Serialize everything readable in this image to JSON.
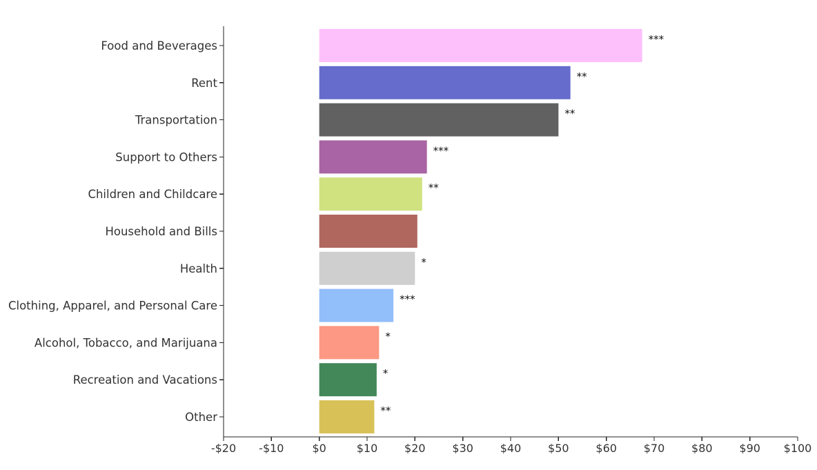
{
  "chart_data": {
    "type": "bar",
    "orientation": "horizontal",
    "title": "",
    "xlabel": "",
    "ylabel": "",
    "xlim": [
      -20,
      100
    ],
    "x_ticks": [
      -20,
      -10,
      0,
      10,
      20,
      30,
      40,
      50,
      60,
      70,
      80,
      90,
      100
    ],
    "x_tick_labels": [
      "-$20",
      "-$10",
      "$0",
      "$10",
      "$20",
      "$30",
      "$40",
      "$50",
      "$60",
      "$70",
      "$80",
      "$90",
      "$100"
    ],
    "grid": false,
    "legend": "none",
    "categories": [
      "Food and Beverages",
      "Rent",
      "Transportation",
      "Support to Others",
      "Children and Childcare",
      "Household and Bills",
      "Health",
      "Clothing, Apparel, and Personal Care",
      "Alcohol, Tobacco, and Marijuana",
      "Recreation and Vacations",
      "Other"
    ],
    "values": [
      67.5,
      52.5,
      50,
      22.5,
      21.5,
      20.5,
      20,
      15.5,
      12.5,
      12,
      11.5
    ],
    "significance": [
      "***",
      "**",
      "**",
      "***",
      "**",
      "",
      "*",
      "***",
      "*",
      "*",
      "**"
    ],
    "colors": [
      "#fdc0fb",
      "#656ccc",
      "#616161",
      "#a864a4",
      "#cfe27f",
      "#b0675e",
      "#cfcfcf",
      "#92befa",
      "#fc9883",
      "#428859",
      "#d8c258"
    ]
  }
}
